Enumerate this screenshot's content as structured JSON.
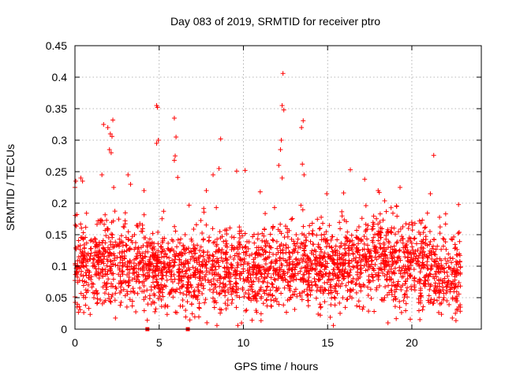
{
  "chart_data": {
    "type": "scatter",
    "title": "Day 083 of 2019, SRMTID for receiver ptro",
    "xlabel": "GPS time / hours",
    "ylabel": "SRMTID / TECUs",
    "xlim": [
      0,
      24.125
    ],
    "ylim": [
      0,
      0.45
    ],
    "xticks": [
      0,
      5,
      10,
      15,
      20
    ],
    "xtick_labels": [
      "0",
      "5",
      "10",
      "15",
      "20"
    ],
    "yticks": [
      0,
      0.05,
      0.1,
      0.15,
      0.2,
      0.25,
      0.3,
      0.35,
      0.4,
      0.45
    ],
    "ytick_labels": [
      "0",
      "0.05",
      "0.1",
      "0.15",
      "0.2",
      "0.25",
      "0.3",
      "0.35",
      "0.4",
      "0.45"
    ],
    "grid": true,
    "marker": "+",
    "color": "#ff0000",
    "cloud": {
      "x_range": [
        0,
        22.9
      ],
      "typical_range": [
        0.02,
        0.2
      ],
      "center_profile_x": [
        0,
        2,
        4,
        6,
        8,
        10,
        12,
        14,
        16,
        18,
        20,
        22,
        23
      ],
      "center_profile_y": [
        0.1,
        0.105,
        0.1,
        0.085,
        0.095,
        0.09,
        0.1,
        0.095,
        0.1,
        0.11,
        0.1,
        0.085,
        0.08
      ],
      "seed": 83
    },
    "series": [
      {
        "name": "SRMTID",
        "points": [
          [
            12.35,
            0.406
          ],
          [
            12.3,
            0.355
          ],
          [
            12.4,
            0.348
          ],
          [
            4.85,
            0.355
          ],
          [
            4.9,
            0.352
          ],
          [
            5.9,
            0.335
          ],
          [
            2.25,
            0.332
          ],
          [
            13.55,
            0.331
          ],
          [
            13.45,
            0.32
          ],
          [
            1.7,
            0.325
          ],
          [
            1.95,
            0.32
          ],
          [
            2.1,
            0.31
          ],
          [
            2.2,
            0.306
          ],
          [
            6.0,
            0.305
          ],
          [
            8.65,
            0.302
          ],
          [
            12.25,
            0.3
          ],
          [
            4.95,
            0.3
          ],
          [
            4.85,
            0.295
          ],
          [
            2.05,
            0.285
          ],
          [
            2.15,
            0.28
          ],
          [
            21.3,
            0.276
          ],
          [
            5.95,
            0.275
          ],
          [
            5.9,
            0.268
          ],
          [
            12.2,
            0.285
          ],
          [
            12.1,
            0.26
          ],
          [
            13.5,
            0.262
          ],
          [
            16.35,
            0.253
          ],
          [
            8.55,
            0.255
          ],
          [
            10.1,
            0.252
          ],
          [
            9.6,
            0.251
          ],
          [
            1.6,
            0.245
          ],
          [
            3.15,
            0.245
          ],
          [
            0.35,
            0.24
          ],
          [
            0.45,
            0.235
          ],
          [
            0.05,
            0.235
          ],
          [
            0.0,
            0.225
          ],
          [
            12.3,
            0.24
          ],
          [
            13.6,
            0.245
          ],
          [
            6.1,
            0.241
          ],
          [
            8.2,
            0.245
          ],
          [
            4.1,
            0.22
          ],
          [
            17.2,
            0.238
          ],
          [
            19.3,
            0.225
          ],
          [
            18.0,
            0.22
          ],
          [
            21.1,
            0.215
          ],
          [
            14.95,
            0.215
          ],
          [
            3.3,
            0.23
          ],
          [
            2.3,
            0.225
          ],
          [
            11.0,
            0.218
          ],
          [
            7.8,
            0.22
          ]
        ],
        "baseline_markers": [
          [
            4.3,
            0.0
          ],
          [
            6.7,
            0.0
          ]
        ]
      }
    ]
  }
}
